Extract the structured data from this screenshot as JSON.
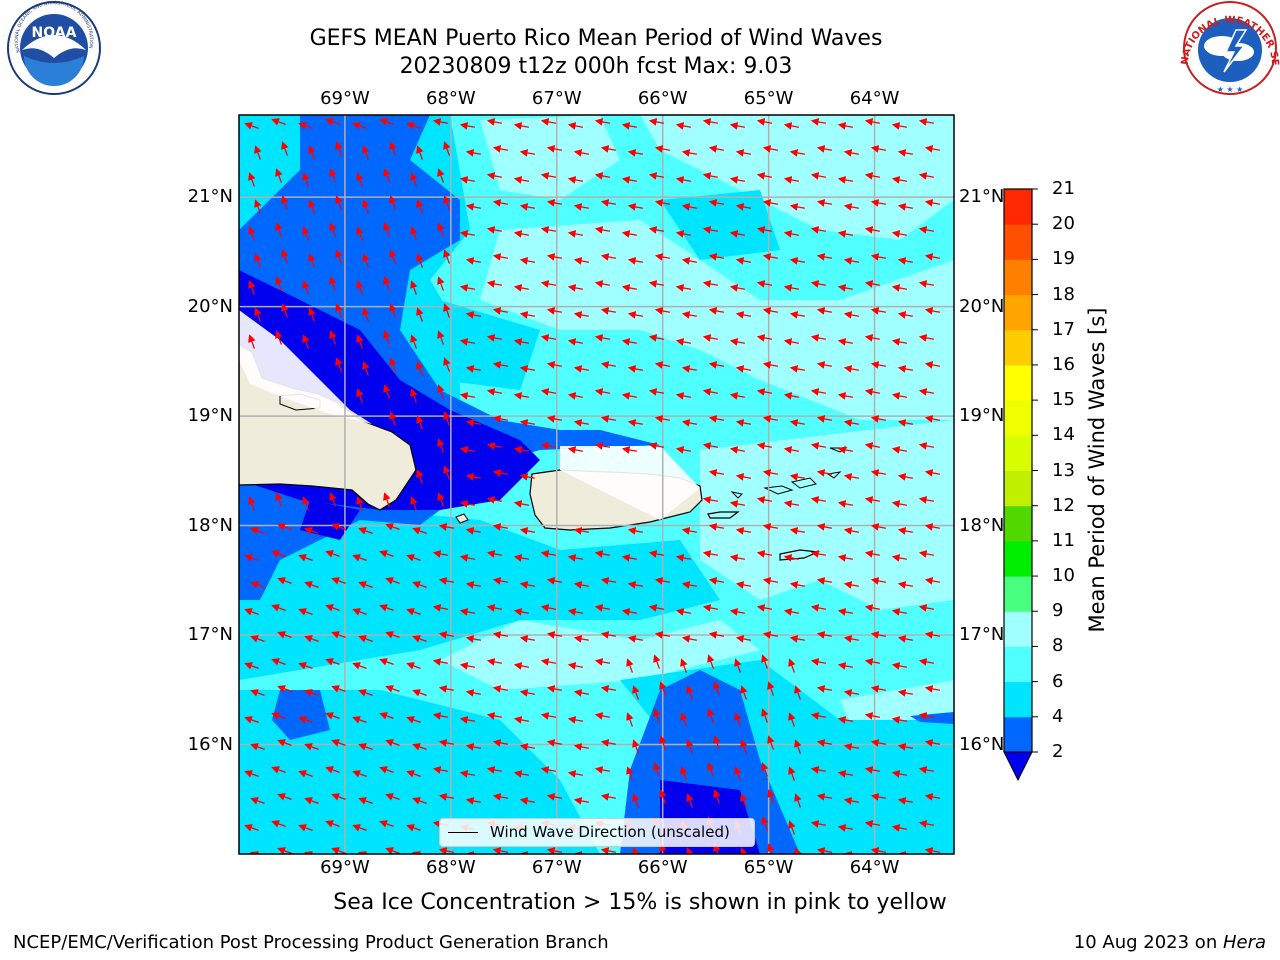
{
  "title": {
    "line1": "GEFS MEAN Puerto Rico Mean Period of Wind Waves",
    "line2": "20230809 t12z 000h fcst   Max: 9.03"
  },
  "longitude_ticks": [
    "69°W",
    "68°W",
    "67°W",
    "66°W",
    "65°W",
    "64°W"
  ],
  "latitude_ticks": [
    "21°N",
    "20°N",
    "19°N",
    "18°N",
    "17°N",
    "16°N"
  ],
  "legend": {
    "label": "Wind Wave Direction (unscaled)"
  },
  "colorbar": {
    "title": "Mean Period of Wind Waves [s]",
    "levels": [
      "2",
      "4",
      "6",
      "8",
      "9",
      "10",
      "11",
      "12",
      "13",
      "14",
      "15",
      "16",
      "17",
      "18",
      "19",
      "20",
      "21"
    ],
    "colors": [
      "#0068ff",
      "#00e5ff",
      "#50ffff",
      "#a0ffff",
      "#48ff80",
      "#00ee00",
      "#50d800",
      "#c0f000",
      "#d8ff00",
      "#f0ff00",
      "#ffff00",
      "#ffcc00",
      "#ffa500",
      "#ff8000",
      "#ff5000",
      "#ff2800",
      "#ff0000"
    ],
    "under_color": "#0000ee"
  },
  "subtitle": "Sea Ice Concentration > 15% is shown in pink to yellow",
  "footer": {
    "left": "NCEP/EMC/Verification Post Processing Product Generation Branch",
    "right_date": "10 Aug 2023 on ",
    "right_host": "Hera"
  },
  "logos": {
    "noaa_text": "NOAA",
    "noaa_ring": "NATIONAL OCEANIC AND ATMOSPHERIC ADMINISTRATION · U.S. DEPARTMENT OF COMMERCE",
    "nws_ring": "NATIONAL WEATHER SERVICE"
  },
  "map": {
    "projection": "lat-lon",
    "lon_range": [
      -70.0,
      -63.25
    ],
    "lat_range": [
      15.0,
      21.75
    ],
    "grid": true,
    "arrow_color": "#ff0000",
    "field_colors": {
      "period_2_4": "#0068ff",
      "period_4_6": "#00e5ff",
      "period_6_8": "#50ffff",
      "period_8_9": "#a0ffff",
      "below_2": "#0000ee",
      "land": "#efecdc",
      "no_data": "#ffffff"
    }
  }
}
